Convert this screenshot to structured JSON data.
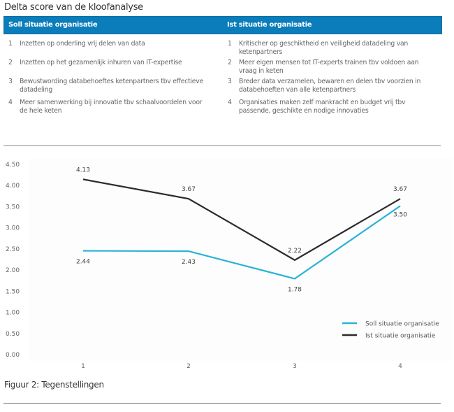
{
  "title": "Delta score van de kloofanalyse",
  "table": {
    "headers": [
      "Soll situatie organisatie",
      "Ist situatie organisatie"
    ],
    "soll": [
      {
        "num": "1",
        "text": "Inzetten op onderling vrij delen van data"
      },
      {
        "num": "2",
        "text": "Inzetten op het gezamenlijk inhuren van IT-expertise"
      },
      {
        "num": "3",
        "text": "Bewustwording databehoeftes ketenpartners tbv effectieve datadeling"
      },
      {
        "num": "4",
        "text": "Meer samenwerking bij innovatie tbv schaalvoordelen voor de hele keten"
      }
    ],
    "ist": [
      {
        "num": "1",
        "text": "Kritischer op geschiktheid en veiligheid datadeling van ketenpartners"
      },
      {
        "num": "2",
        "text": "Meer eigen mensen tot IT-experts trainen tbv voldoen aan vraag in keten"
      },
      {
        "num": "3",
        "text": "Breder data verzamelen, bewaren en delen tbv voorzien in databehoeften van alle ketenpartners"
      },
      {
        "num": "4",
        "text": "Organisaties maken zelf mankracht en budget vrij tbv passende, geschikte en nodige innovaties"
      }
    ],
    "header_color": "#0a7dba"
  },
  "caption": "Figuur 2: Tegenstellingen",
  "chart_data": {
    "type": "line",
    "title": "",
    "xlabel": "",
    "ylabel": "",
    "categories": [
      "1",
      "2",
      "3",
      "4"
    ],
    "ylim": [
      0,
      4.5
    ],
    "yticks": [
      "0.00",
      "0.50",
      "1.00",
      "1.50",
      "2.00",
      "2.50",
      "3.00",
      "3.50",
      "4.00",
      "4.50"
    ],
    "grid": false,
    "legend_position": "bottom-right",
    "series": [
      {
        "name": "Soll situatie organisatie",
        "color": "#29b3d6",
        "values": [
          2.44,
          2.43,
          1.78,
          3.5
        ],
        "labels": [
          "2.44",
          "2.43",
          "1.78",
          "3.50"
        ]
      },
      {
        "name": "Ist situatie organisatie",
        "color": "#2b2b2e",
        "values": [
          4.13,
          3.67,
          2.22,
          3.67
        ],
        "labels": [
          "4.13",
          "3.67",
          "2.22",
          "3.67"
        ]
      }
    ]
  }
}
